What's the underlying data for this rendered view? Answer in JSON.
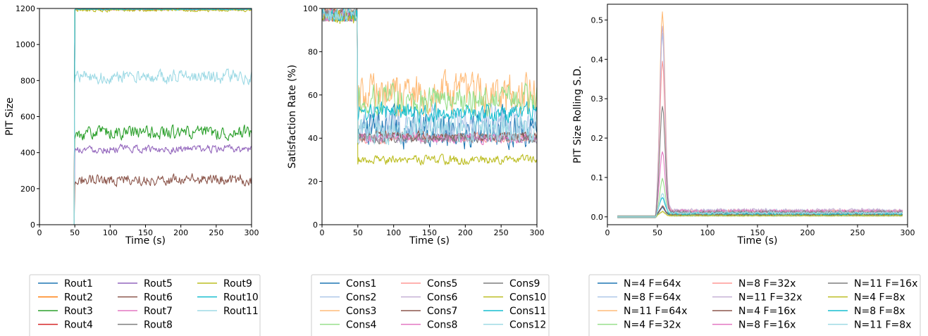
{
  "chart_data": [
    {
      "type": "line",
      "xlabel": "Time (s)",
      "ylabel": "PIT Size",
      "xlim": [
        0,
        300
      ],
      "ylim": [
        0,
        1200
      ],
      "xticks": [
        0,
        50,
        100,
        150,
        200,
        250,
        300
      ],
      "yticks": [
        0,
        200,
        400,
        600,
        800,
        1000,
        1200
      ],
      "legend_position": "below",
      "legend_columns": 3,
      "series": [
        {
          "name": "Rout1",
          "color": "#1f77b4",
          "pre": 0,
          "level": 1195,
          "noise": 3
        },
        {
          "name": "Rout2",
          "color": "#ff7f0e",
          "pre": 0,
          "level": 1195,
          "noise": 3
        },
        {
          "name": "Rout3",
          "color": "#2ca02c",
          "pre": 0,
          "level": 510,
          "noise": 35
        },
        {
          "name": "Rout4",
          "color": "#d62728",
          "pre": 0,
          "level": 1195,
          "noise": 3
        },
        {
          "name": "Rout5",
          "color": "#9467bd",
          "pre": 0,
          "level": 420,
          "noise": 20
        },
        {
          "name": "Rout6",
          "color": "#8c564b",
          "pre": 0,
          "level": 250,
          "noise": 30
        },
        {
          "name": "Rout7",
          "color": "#e377c2",
          "pre": 0,
          "level": 1195,
          "noise": 4
        },
        {
          "name": "Rout8",
          "color": "#7f7f7f",
          "pre": 0,
          "level": 1195,
          "noise": 3
        },
        {
          "name": "Rout9",
          "color": "#bcbd22",
          "pre": 0,
          "level": 1190,
          "noise": 8
        },
        {
          "name": "Rout10",
          "color": "#17becf",
          "pre": 0,
          "level": 1195,
          "noise": 3
        },
        {
          "name": "Rout11",
          "color": "#9edae5",
          "pre": 0,
          "level": 820,
          "noise": 35
        }
      ]
    },
    {
      "type": "line",
      "xlabel": "Time (s)",
      "ylabel": "Satisfaction Rate (%)",
      "xlim": [
        0,
        300
      ],
      "ylim": [
        0,
        100
      ],
      "xticks": [
        0,
        50,
        100,
        150,
        200,
        250,
        300
      ],
      "yticks": [
        0,
        20,
        40,
        60,
        80,
        100
      ],
      "legend_position": "below",
      "legend_columns": 3,
      "series": [
        {
          "name": "Cons1",
          "color": "#1f77b4",
          "pre": 97,
          "level": 45,
          "noise": 8
        },
        {
          "name": "Cons2",
          "color": "#aec7e8",
          "pre": 97,
          "level": 46,
          "noise": 8
        },
        {
          "name": "Cons3",
          "color": "#ffbb78",
          "pre": 97,
          "level": 60,
          "noise": 9
        },
        {
          "name": "Cons4",
          "color": "#98df8a",
          "pre": 97,
          "level": 58,
          "noise": 6
        },
        {
          "name": "Cons5",
          "color": "#ff9896",
          "pre": 97,
          "level": 40,
          "noise": 2
        },
        {
          "name": "Cons6",
          "color": "#c5b0d5",
          "pre": 97,
          "level": 40,
          "noise": 2
        },
        {
          "name": "Cons7",
          "color": "#8c564b",
          "pre": 97,
          "level": 41,
          "noise": 2
        },
        {
          "name": "Cons8",
          "color": "#e377c2",
          "pre": 97,
          "level": 40,
          "noise": 2
        },
        {
          "name": "Cons9",
          "color": "#7f7f7f",
          "pre": 97,
          "level": 40,
          "noise": 2
        },
        {
          "name": "Cons10",
          "color": "#bcbd22",
          "pre": 96,
          "level": 30,
          "noise": 2
        },
        {
          "name": "Cons11",
          "color": "#17becf",
          "pre": 97,
          "level": 52,
          "noise": 4
        },
        {
          "name": "Cons12",
          "color": "#9edae5",
          "pre": 97,
          "level": 44,
          "noise": 6
        }
      ]
    },
    {
      "type": "line",
      "xlabel": "Time (s)",
      "ylabel": "PIT Size Rolling S.D.",
      "xlim": [
        0,
        300
      ],
      "ylim": [
        -0.02,
        0.54
      ],
      "xticks": [
        0,
        50,
        100,
        150,
        200,
        250,
        300
      ],
      "yticks": [
        0.0,
        0.1,
        0.2,
        0.3,
        0.4,
        0.5
      ],
      "ytick_labels": [
        "0.0",
        "0.1",
        "0.2",
        "0.3",
        "0.4",
        "0.5"
      ],
      "legend_position": "below",
      "legend_columns": 3,
      "series": [
        {
          "name": "N=4 F=64x",
          "color": "#1f77b4",
          "peak": 0.02,
          "tail": 0.004
        },
        {
          "name": "N=8 F=64x",
          "color": "#aec7e8",
          "peak": 0.45,
          "tail": 0.015
        },
        {
          "name": "N=11 F=64x",
          "color": "#ffbb78",
          "peak": 0.51,
          "tail": 0.012
        },
        {
          "name": "N=4 F=32x",
          "color": "#98df8a",
          "peak": 0.09,
          "tail": 0.006
        },
        {
          "name": "N=8 F=32x",
          "color": "#ff9896",
          "peak": 0.38,
          "tail": 0.014
        },
        {
          "name": "N=11 F=32x",
          "color": "#c5b0d5",
          "peak": 0.47,
          "tail": 0.016
        },
        {
          "name": "N=4 F=16x",
          "color": "#8c564b",
          "peak": 0.02,
          "tail": 0.006
        },
        {
          "name": "N=8 F=16x",
          "color": "#e377c2",
          "peak": 0.15,
          "tail": 0.014
        },
        {
          "name": "N=11 F=16x",
          "color": "#7f7f7f",
          "peak": 0.27,
          "tail": 0.012
        },
        {
          "name": "N=4 F=8x",
          "color": "#bcbd22",
          "peak": 0.01,
          "tail": 0.003
        },
        {
          "name": "N=8 F=8x",
          "color": "#17becf",
          "peak": 0.04,
          "tail": 0.008
        },
        {
          "name": "N=11 F=8x",
          "color": "#9edae5",
          "peak": 0.05,
          "tail": 0.01
        }
      ]
    }
  ]
}
